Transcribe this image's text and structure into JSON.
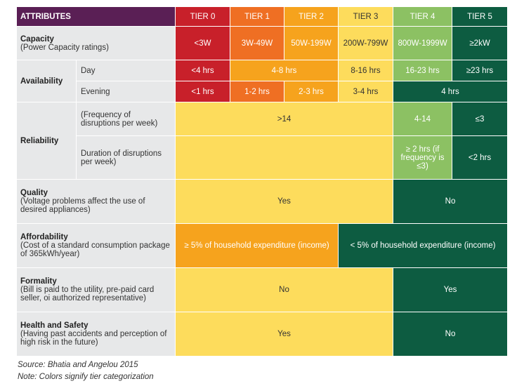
{
  "header": {
    "attributes": "ATTRIBUTES",
    "tiers": [
      "TIER 0",
      "TIER 1",
      "TIER 2",
      "TIER 3",
      "TIER 4",
      "TIER 5"
    ]
  },
  "colors": {
    "header_attr": "#5a1f55",
    "tier0": "#c8202a",
    "tier1": "#ef6f23",
    "tier2": "#f6a31d",
    "tier3": "#fddc5c",
    "tier4": "#8cc163",
    "tier5": "#0d5c41",
    "attribute_bg": "#e7e8e9"
  },
  "rows": {
    "capacity": {
      "name": "Capacity",
      "desc": "(Power Capacity ratings)",
      "values": [
        "<3W",
        "3W-49W",
        "50W-199W",
        "200W-799W",
        "800W-1999W",
        "≥2kW"
      ]
    },
    "availability": {
      "name": "Availability",
      "day_label": "Day",
      "day_values": [
        "<4 hrs",
        "4-8 hrs",
        "8-16 hrs",
        "16-23 hrs",
        "≥23 hrs"
      ],
      "evening_label": "Evening",
      "evening_values": [
        "<1 hrs",
        "1-2 hrs",
        "2-3 hrs",
        "3-4 hrs",
        "4 hrs"
      ]
    },
    "reliability": {
      "name": "Reliability",
      "freq_label": "(Frequency of disruptions per week)",
      "freq_values": [
        ">14",
        "4-14",
        "≤3"
      ],
      "dur_label": "Duration of disruptions per week)",
      "dur_values": [
        "≥ 2 hrs (if frequency is ≤3)",
        "<2 hrs"
      ]
    },
    "quality": {
      "name": "Quality",
      "desc": "(Voltage problems affect the use of desired appliances)",
      "values": [
        "Yes",
        "No"
      ]
    },
    "affordability": {
      "name": "Affordability",
      "desc": "(Cost of a standard consumption package of 365kWh/year)",
      "values": [
        "≥ 5% of household expenditure (income)",
        "< 5% of household expenditure (income)"
      ]
    },
    "formality": {
      "name": "Formality",
      "desc": "(Bill is paid to the utility, pre-paid card seller, oi authorized representative)",
      "values": [
        "No",
        "Yes"
      ]
    },
    "health": {
      "name": "Health and Safety",
      "desc": "(Having past accidents and perception of high risk in the future)",
      "values": [
        "Yes",
        "No"
      ]
    }
  },
  "notes": {
    "source": "Source: Bhatia and Angelou 2015",
    "note": "Note: Colors signify tier categorization"
  }
}
